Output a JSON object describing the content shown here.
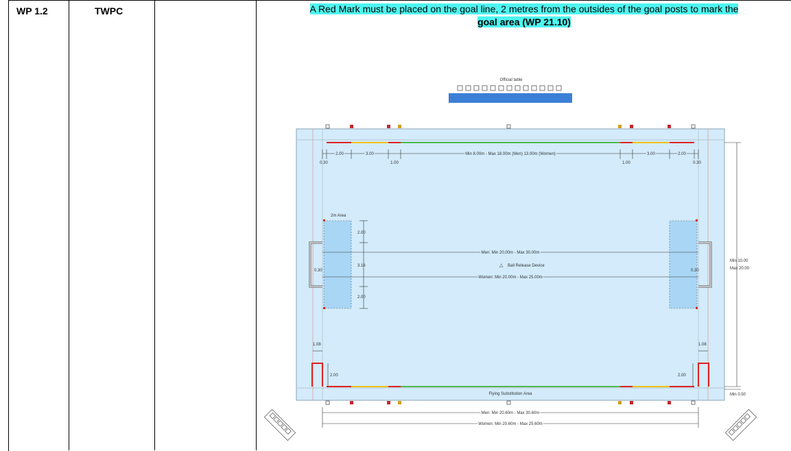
{
  "row": {
    "id": "WP 1.2",
    "code": "TWPC",
    "empty_col": "",
    "text_line1": "A Red Mark must be placed on the goal line, 2 metres from the outsides of the goal posts to mark the",
    "text_line2": "goal area (WP 21.10)"
  },
  "diagram": {
    "official_table": "Official table",
    "top_dims": [
      "0.30",
      "2.00",
      "3.00",
      "1.00",
      "Min 8.00m - Max 18.00m (Men) 13.00m (Women)",
      "1.00",
      "3.00",
      "2.00",
      "0.30"
    ],
    "area_label": "2m Area",
    "left_dims": [
      "2.00",
      "3.16",
      "2.00",
      "0.30"
    ],
    "right_dims": [
      "0.30"
    ],
    "men_length": "Men: Min 20.00m - Max 30.00m",
    "ball_release": "Ball Release Device",
    "women_length": "Women: Min 20.00m - Max 25.00m",
    "width_label_1": "Min 10.00",
    "width_label_2": "Max 20.00",
    "sub_dims": [
      "1.08",
      "2.00",
      "1.08",
      "2.00"
    ],
    "flying_sub": "Flying Substitution Area",
    "min_050": "Min 0.50",
    "men_outer": "Men: Min 20.60m - Max 30.60m",
    "women_outer": "Women: Min 20.60m - Max 25.60m",
    "colors": {
      "pool": "#d3ebfa",
      "red": "#e02020",
      "yellow": "#f0c400",
      "green": "#4cb84c",
      "table": "#3c7fd6"
    }
  }
}
